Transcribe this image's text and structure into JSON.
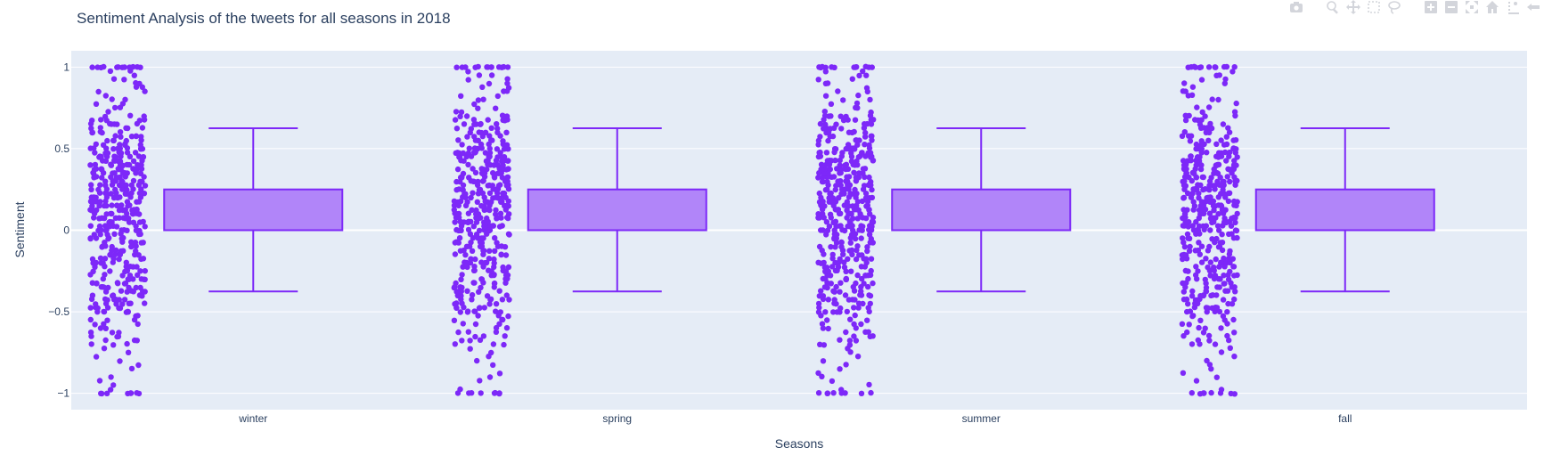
{
  "chart_data": {
    "type": "box",
    "title": "Sentiment Analysis of the tweets for all seasons in 2018",
    "xlabel": "Seasons",
    "ylabel": "Sentiment",
    "categories": [
      "winter",
      "spring",
      "summer",
      "fall"
    ],
    "ylim": [
      -1.1,
      1.1
    ],
    "yticks": [
      -1,
      -0.5,
      0,
      0.5,
      1
    ],
    "ytick_labels": [
      "−1",
      "−0.5",
      "0",
      "0.5",
      "1"
    ],
    "grid": true,
    "legend": "none",
    "boxpoints": "all",
    "boxes": [
      {
        "category": "winter",
        "lower_fence": -0.375,
        "q1": 0,
        "median": 0,
        "q3": 0.25,
        "upper_fence": 0.625,
        "min": -1,
        "max": 1
      },
      {
        "category": "spring",
        "lower_fence": -0.375,
        "q1": 0,
        "median": 0,
        "q3": 0.25,
        "upper_fence": 0.625,
        "min": -1,
        "max": 1
      },
      {
        "category": "summer",
        "lower_fence": -0.375,
        "q1": 0,
        "median": 0,
        "q3": 0.25,
        "upper_fence": 0.625,
        "min": -1,
        "max": 1
      },
      {
        "category": "fall",
        "lower_fence": -0.375,
        "q1": 0,
        "median": 0,
        "q3": 0.25,
        "upper_fence": 0.625,
        "min": -1,
        "max": 1
      }
    ],
    "colors": {
      "marker": "#7d28f8",
      "box_line": "#7d28f8",
      "box_fill": "#b185f9",
      "plot_bg": "#e5ecf6",
      "grid": "#ffffff",
      "text": "#2a3f5f"
    }
  },
  "modebar": {
    "icons": [
      "camera-icon",
      "zoom-icon",
      "pan-icon",
      "box-select-icon",
      "lasso-select-icon",
      "zoom-in-icon",
      "zoom-out-icon",
      "autoscale-icon",
      "reset-axes-icon",
      "spike-lines-icon",
      "compare-data-icon"
    ]
  }
}
